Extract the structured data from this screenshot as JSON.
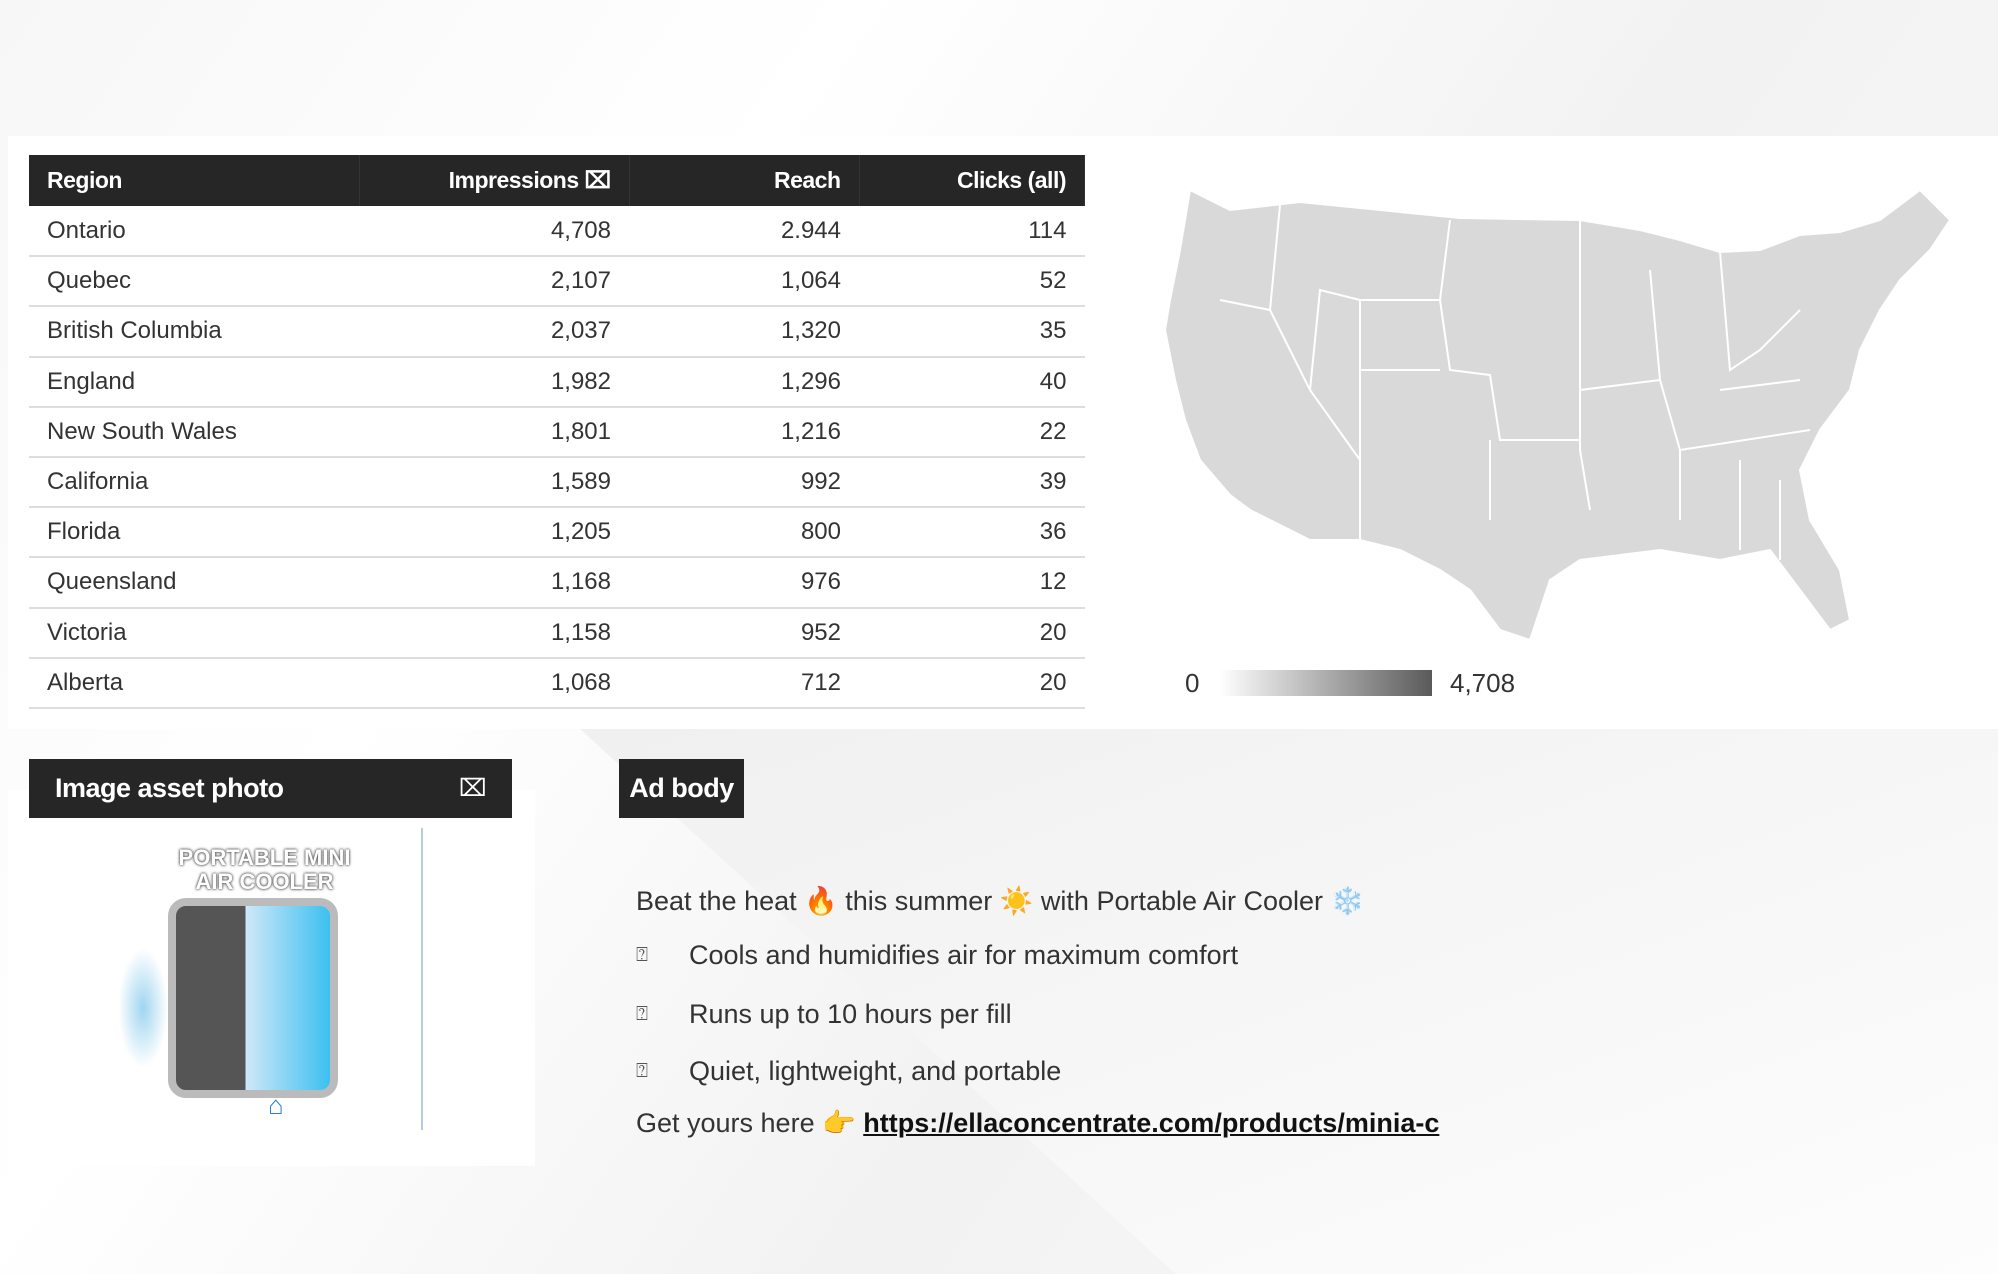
{
  "table": {
    "headers": [
      "Region",
      "Impressions ⌧",
      "Reach",
      "Clicks (all)"
    ],
    "rows": [
      [
        "Ontario",
        "4,708",
        "2.944",
        "114"
      ],
      [
        "Quebec",
        "2,107",
        "1,064",
        "52"
      ],
      [
        "British Columbia",
        "2,037",
        "1,320",
        "35"
      ],
      [
        "England",
        "1,982",
        "1,296",
        "40"
      ],
      [
        "New South Wales",
        "1,801",
        "1,216",
        "22"
      ],
      [
        "California",
        "1,589",
        "992",
        "39"
      ],
      [
        "Florida",
        "1,205",
        "800",
        "36"
      ],
      [
        "Queensland",
        "1,168",
        "976",
        "12"
      ],
      [
        "Victoria",
        "1,158",
        "952",
        "20"
      ],
      [
        "Alberta",
        "1,068",
        "712",
        "20"
      ]
    ]
  },
  "map": {
    "legend_min": "0",
    "legend_max": "4,708",
    "fill": "#d9d9d9",
    "gradient_end": "#5a5a5a"
  },
  "image_panel": {
    "title": "Image asset photo",
    "icon": "⌧",
    "photo_title_line1": "PORTABLE MINI",
    "photo_title_line2": "AIR COOLER"
  },
  "ad_body": {
    "title": "Ad body",
    "line1": {
      "a": "Beat the heat ",
      "e1": "🔥",
      "b": " this summer ",
      "e2": "☀️",
      "c": " with Portable Air Cooler ",
      "e3": "❄️"
    },
    "bullet_glyph": "⍰",
    "bullets": [
      "Cools and humidifies air for maximum comfort",
      "Runs up to 10 hours per fill",
      "Quiet, lightweight, and portable"
    ],
    "cta": "Get yours here ",
    "cta_emoji": "👉",
    "link": "https://ellaconcentrate.com/products/minia-c"
  }
}
